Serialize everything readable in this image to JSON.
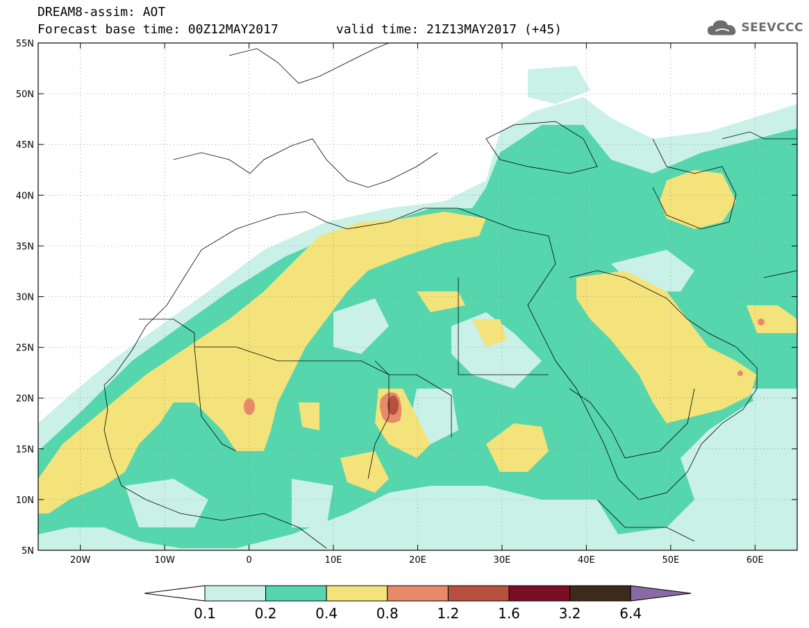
{
  "header": {
    "line1": "DREAM8-assim: AOT",
    "line2": "Forecast base time: 00Z12MAY2017",
    "valid": "valid time: 21Z13MAY2017 (+45)",
    "logo_text": "SEEVCCC"
  },
  "map": {
    "lon_range": [
      -25,
      65
    ],
    "lat_range": [
      5,
      55
    ],
    "lat_labels": [
      "55N",
      "50N",
      "45N",
      "40N",
      "35N",
      "30N",
      "25N",
      "20N",
      "15N",
      "10N",
      "5N"
    ],
    "lat_values": [
      55,
      50,
      45,
      40,
      35,
      30,
      25,
      20,
      15,
      10,
      5
    ],
    "lon_labels": [
      "20W",
      "10W",
      "0",
      "10E",
      "20E",
      "30E",
      "40E",
      "50E",
      "60E"
    ],
    "lon_values": [
      -20,
      -10,
      0,
      10,
      20,
      30,
      40,
      50,
      60
    ],
    "gridlines": "dotted"
  },
  "colorbar": {
    "levels": [
      "0.1",
      "0.2",
      "0.4",
      "0.8",
      "1.2",
      "1.6",
      "3.2",
      "6.4"
    ],
    "colors": [
      "#ffffff",
      "#c9f1e8",
      "#56d6ad",
      "#f3e37a",
      "#e8896a",
      "#b7503e",
      "#7a0e25",
      "#3d2a1b",
      "#8a6aa6"
    ]
  }
}
